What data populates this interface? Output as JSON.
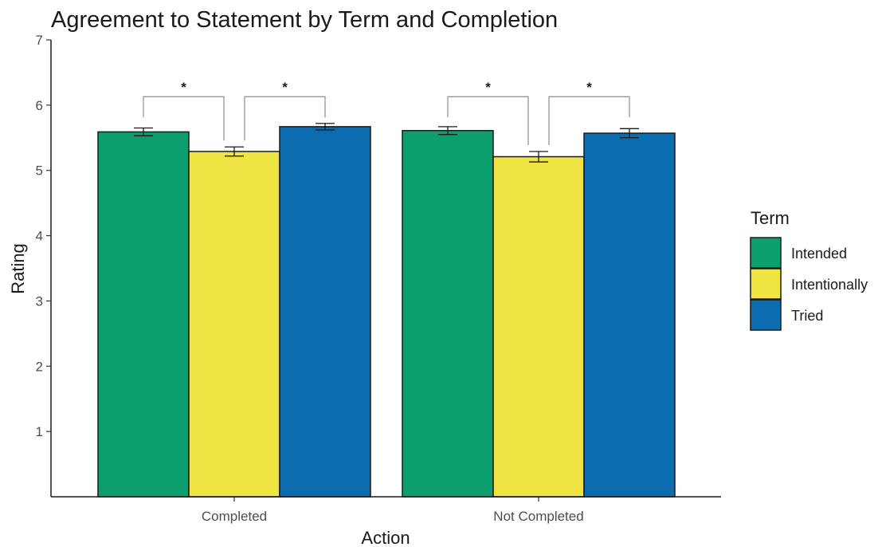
{
  "chart_data": {
    "type": "bar",
    "title": "Agreement to Statement by Term and Completion",
    "xlabel": "Action",
    "ylabel": "Rating",
    "ylim": [
      0,
      7
    ],
    "yticks": [
      1,
      2,
      3,
      4,
      5,
      6,
      7
    ],
    "grid": false,
    "categories": [
      "Completed",
      "Not Completed"
    ],
    "legend": {
      "title": "Term",
      "placement": "right"
    },
    "series": [
      {
        "name": "Intended",
        "color": "#0c9e6f",
        "values": [
          5.59,
          5.61
        ],
        "errors": [
          0.06,
          0.06
        ]
      },
      {
        "name": "Intentionally",
        "color": "#f0e442",
        "values": [
          5.29,
          5.21
        ],
        "errors": [
          0.07,
          0.08
        ]
      },
      {
        "name": "Tried",
        "color": "#0b6db0",
        "values": [
          5.67,
          5.57
        ],
        "errors": [
          0.05,
          0.07
        ]
      }
    ],
    "significance": [
      {
        "category": 0,
        "from_series": 0,
        "to_series": 1,
        "label": "*"
      },
      {
        "category": 0,
        "from_series": 1,
        "to_series": 2,
        "label": "*"
      },
      {
        "category": 1,
        "from_series": 0,
        "to_series": 1,
        "label": "*"
      },
      {
        "category": 1,
        "from_series": 1,
        "to_series": 2,
        "label": "*"
      }
    ]
  }
}
